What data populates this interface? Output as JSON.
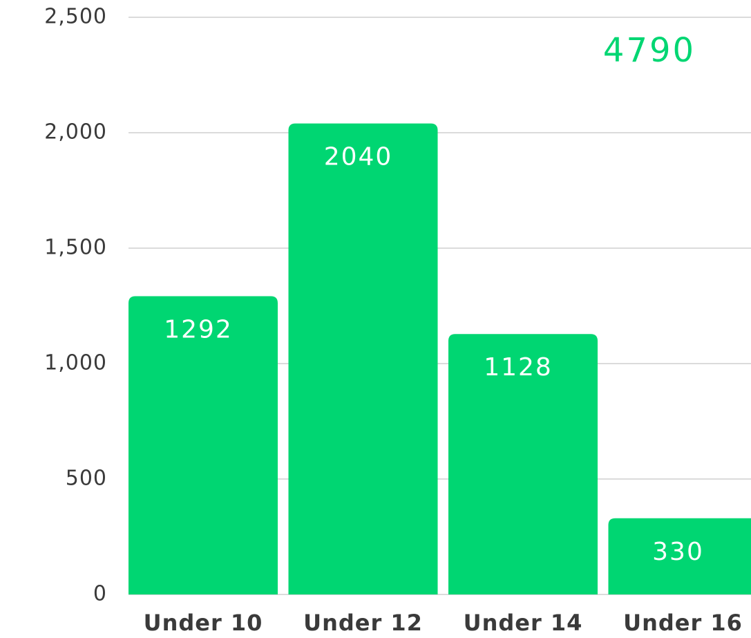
{
  "chart_data": {
    "type": "bar",
    "annotation": "4790",
    "categories": [
      "Under 10",
      "Under 12",
      "Under 14",
      "Under 16"
    ],
    "values": [
      1292,
      2040,
      1128,
      330
    ],
    "color": "#00d672",
    "ylim": [
      0,
      2500
    ],
    "yticks": [
      0,
      500,
      {
        "value": 1000,
        "label": "1,000"
      },
      {
        "value": 1500,
        "label": "1,500"
      },
      {
        "value": 2000,
        "label": "2,000"
      },
      {
        "value": 2500,
        "label": "2,500"
      }
    ],
    "grid": true
  }
}
